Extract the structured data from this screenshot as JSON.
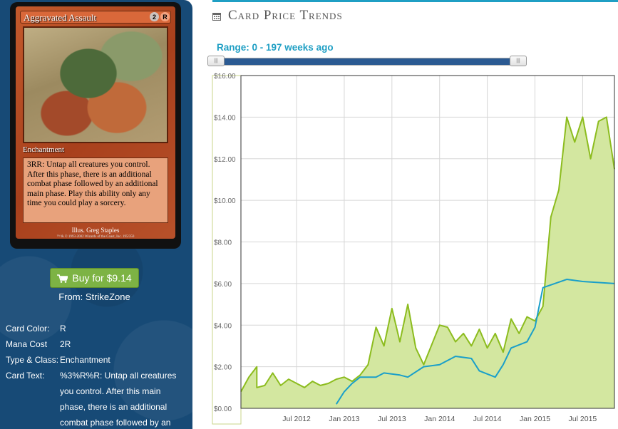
{
  "card_image": {
    "name": "Aggravated Assault",
    "cost_symbols": [
      "2",
      "R"
    ],
    "type_line": "Enchantment",
    "rules_text": "3RR: Untap all creatures you control. After this phase, there is an additional combat phase followed by an additional main phase. Play this ability only any time you could play a sorcery.",
    "illustrator": "Illus. Greg Staples",
    "copyright": "™ & © 1993-2002 Wizards of the Coast, Inc. 195/350"
  },
  "buy": {
    "label": "Buy for $9.14",
    "from": "From: StrikeZone",
    "icon": "shopping-cart-icon",
    "color": "#7db344"
  },
  "details": [
    {
      "label": "Card Color:",
      "value": "R"
    },
    {
      "label": "Mana Cost",
      "value": "2R"
    },
    {
      "label": "Type & Class:",
      "value": "Enchantment"
    },
    {
      "label": "Card Text:",
      "value": "%3%R%R: Untap all creatures you control. After this main phase, there is an additional combat phase followed by an"
    }
  ],
  "section": {
    "title": "Card Price Trends",
    "icon": "calendar-icon"
  },
  "range": {
    "label": "Range: 0 - 197 weeks ago",
    "min": 0,
    "max": 197
  },
  "chart_data": {
    "type": "area",
    "title": "",
    "ylabel": "",
    "ylim": [
      0,
      16
    ],
    "yticks": [
      "$0.00",
      "$2.00",
      "$4.00",
      "$6.00",
      "$8.00",
      "$10.00",
      "$12.00",
      "$14.00",
      "$16.00"
    ],
    "xlim": [
      "2011-12",
      "2015-11"
    ],
    "xticks": [
      {
        "label": "Jul 2012",
        "x": "2012-07"
      },
      {
        "label": "Jan 2013",
        "x": "2013-01"
      },
      {
        "label": "Jul 2013",
        "x": "2013-07"
      },
      {
        "label": "Jan 2014",
        "x": "2014-01"
      },
      {
        "label": "Jul 2014",
        "x": "2014-07"
      },
      {
        "label": "Jan 2015",
        "x": "2015-01"
      },
      {
        "label": "Jul 2015",
        "x": "2015-07"
      }
    ],
    "grid": true,
    "colors": {
      "green": "#8cbc1e",
      "fill": "#d3e7a0",
      "blue": "#1a9fc9"
    },
    "series": [
      {
        "color": "green",
        "points": [
          [
            "2011-12",
            0.8
          ],
          [
            "2012-01",
            1.5
          ],
          [
            "2012-02",
            2.0
          ],
          [
            "2012-02",
            1.0
          ],
          [
            "2012-03",
            1.1
          ],
          [
            "2012-04",
            1.7
          ],
          [
            "2012-05",
            1.1
          ],
          [
            "2012-06",
            1.4
          ],
          [
            "2012-07",
            1.2
          ],
          [
            "2012-08",
            1.0
          ],
          [
            "2012-09",
            1.3
          ],
          [
            "2012-10",
            1.1
          ],
          [
            "2012-11",
            1.2
          ],
          [
            "2012-12",
            1.4
          ],
          [
            "2013-01",
            1.5
          ],
          [
            "2013-02",
            1.3
          ],
          [
            "2013-03",
            1.6
          ],
          [
            "2013-04",
            2.1
          ],
          [
            "2013-05",
            3.9
          ],
          [
            "2013-06",
            3.0
          ],
          [
            "2013-07",
            4.8
          ],
          [
            "2013-08",
            3.2
          ],
          [
            "2013-09",
            5.0
          ],
          [
            "2013-10",
            2.9
          ],
          [
            "2013-11",
            2.1
          ],
          [
            "2014-01",
            4.0
          ],
          [
            "2014-02",
            3.9
          ],
          [
            "2014-03",
            3.2
          ],
          [
            "2014-04",
            3.6
          ],
          [
            "2014-05",
            3.0
          ],
          [
            "2014-06",
            3.8
          ],
          [
            "2014-07",
            2.9
          ],
          [
            "2014-08",
            3.6
          ],
          [
            "2014-09",
            2.7
          ],
          [
            "2014-10",
            4.3
          ],
          [
            "2014-11",
            3.6
          ],
          [
            "2014-12",
            4.4
          ],
          [
            "2015-01",
            4.2
          ],
          [
            "2015-02",
            4.9
          ],
          [
            "2015-03",
            9.2
          ],
          [
            "2015-04",
            10.5
          ],
          [
            "2015-05",
            14.0
          ],
          [
            "2015-06",
            12.8
          ],
          [
            "2015-07",
            14.0
          ],
          [
            "2015-08",
            12.0
          ],
          [
            "2015-09",
            13.8
          ],
          [
            "2015-10",
            14.0
          ],
          [
            "2015-11",
            11.5
          ]
        ]
      },
      {
        "color": "blue",
        "points": [
          [
            "2012-12",
            0.2
          ],
          [
            "2013-01",
            0.8
          ],
          [
            "2013-02",
            1.2
          ],
          [
            "2013-03",
            1.5
          ],
          [
            "2013-05",
            1.5
          ],
          [
            "2013-06",
            1.7
          ],
          [
            "2013-08",
            1.6
          ],
          [
            "2013-09",
            1.5
          ],
          [
            "2013-11",
            2.0
          ],
          [
            "2014-01",
            2.1
          ],
          [
            "2014-03",
            2.5
          ],
          [
            "2014-05",
            2.4
          ],
          [
            "2014-06",
            1.8
          ],
          [
            "2014-08",
            1.5
          ],
          [
            "2014-09",
            2.1
          ],
          [
            "2014-10",
            2.9
          ],
          [
            "2014-12",
            3.2
          ],
          [
            "2015-01",
            3.9
          ],
          [
            "2015-02",
            5.8
          ],
          [
            "2015-05",
            6.2
          ],
          [
            "2015-07",
            6.1
          ],
          [
            "2015-11",
            6.0
          ]
        ]
      }
    ]
  }
}
